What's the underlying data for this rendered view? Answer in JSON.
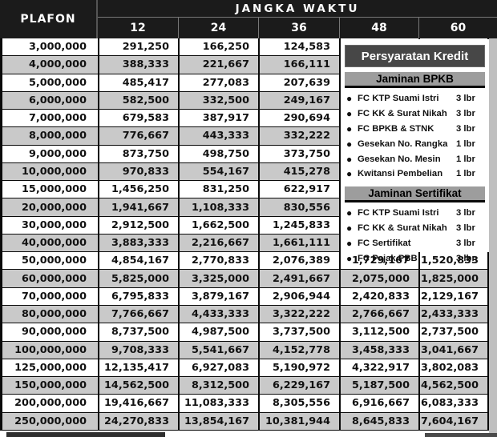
{
  "table": {
    "plafon_header": "PLAFON",
    "jangka_waktu_header": "JANGKA WAKTU",
    "period_columns": [
      "12",
      "24",
      "36",
      "48",
      "60"
    ],
    "rows": [
      {
        "plafon": "3,000,000",
        "values": [
          "291,250",
          "166,250",
          "124,583",
          "",
          ""
        ]
      },
      {
        "plafon": "4,000,000",
        "values": [
          "388,333",
          "221,667",
          "166,111",
          "",
          ""
        ]
      },
      {
        "plafon": "5,000,000",
        "values": [
          "485,417",
          "277,083",
          "207,639",
          "",
          ""
        ]
      },
      {
        "plafon": "6,000,000",
        "values": [
          "582,500",
          "332,500",
          "249,167",
          "",
          ""
        ]
      },
      {
        "plafon": "7,000,000",
        "values": [
          "679,583",
          "387,917",
          "290,694",
          "",
          ""
        ]
      },
      {
        "plafon": "8,000,000",
        "values": [
          "776,667",
          "443,333",
          "332,222",
          "",
          ""
        ]
      },
      {
        "plafon": "9,000,000",
        "values": [
          "873,750",
          "498,750",
          "373,750",
          "",
          ""
        ]
      },
      {
        "plafon": "10,000,000",
        "values": [
          "970,833",
          "554,167",
          "415,278",
          "",
          ""
        ]
      },
      {
        "plafon": "15,000,000",
        "values": [
          "1,456,250",
          "831,250",
          "622,917",
          "",
          ""
        ]
      },
      {
        "plafon": "20,000,000",
        "values": [
          "1,941,667",
          "1,108,333",
          "830,556",
          "",
          ""
        ]
      },
      {
        "plafon": "30,000,000",
        "values": [
          "2,912,500",
          "1,662,500",
          "1,245,833",
          "",
          ""
        ]
      },
      {
        "plafon": "40,000,000",
        "values": [
          "3,883,333",
          "2,216,667",
          "1,661,111",
          "",
          ""
        ]
      },
      {
        "plafon": "50,000,000",
        "values": [
          "4,854,167",
          "2,770,833",
          "2,076,389",
          "1,729,167",
          "1,520,833"
        ]
      },
      {
        "plafon": "60,000,000",
        "values": [
          "5,825,000",
          "3,325,000",
          "2,491,667",
          "2,075,000",
          "1,825,000"
        ]
      },
      {
        "plafon": "70,000,000",
        "values": [
          "6,795,833",
          "3,879,167",
          "2,906,944",
          "2,420,833",
          "2,129,167"
        ]
      },
      {
        "plafon": "80,000,000",
        "values": [
          "7,766,667",
          "4,433,333",
          "3,322,222",
          "2,766,667",
          "2,433,333"
        ]
      },
      {
        "plafon": "90,000,000",
        "values": [
          "8,737,500",
          "4,987,500",
          "3,737,500",
          "3,112,500",
          "2,737,500"
        ]
      },
      {
        "plafon": "100,000,000",
        "values": [
          "9,708,333",
          "5,541,667",
          "4,152,778",
          "3,458,333",
          "3,041,667"
        ]
      },
      {
        "plafon": "125,000,000",
        "values": [
          "12,135,417",
          "6,927,083",
          "5,190,972",
          "4,322,917",
          "3,802,083"
        ]
      },
      {
        "plafon": "150,000,000",
        "values": [
          "14,562,500",
          "8,312,500",
          "6,229,167",
          "5,187,500",
          "4,562,500"
        ]
      },
      {
        "plafon": "200,000,000",
        "values": [
          "19,416,667",
          "11,083,333",
          "8,305,556",
          "6,916,667",
          "6,083,333"
        ]
      },
      {
        "plafon": "250,000,000",
        "values": [
          "24,270,833",
          "13,854,167",
          "10,381,944",
          "8,645,833",
          "7,604,167"
        ]
      }
    ]
  },
  "panel": {
    "title": "Persyaratan Kredit",
    "sections": [
      {
        "heading": "Jaminan BPKB",
        "items": [
          {
            "label": "FC KTP Suami Istri",
            "qty": "3 lbr"
          },
          {
            "label": "FC KK & Surat Nikah",
            "qty": "3 lbr"
          },
          {
            "label": "FC BPKB & STNK",
            "qty": "3 lbr"
          },
          {
            "label": "Gesekan No. Rangka",
            "qty": "1 lbr"
          },
          {
            "label": "Gesekan No. Mesin",
            "qty": "1 lbr"
          },
          {
            "label": "Kwitansi Pembelian",
            "qty": "1 lbr"
          }
        ]
      },
      {
        "heading": "Jaminan Sertifikat",
        "items": [
          {
            "label": "FC KTP Suami Istri",
            "qty": "3 lbr"
          },
          {
            "label": "FC KK & Surat Nikah",
            "qty": "3 lbr"
          },
          {
            "label": "FC Sertifikat",
            "qty": "3 lbr"
          },
          {
            "label": "FC Pajak PBB",
            "qty": "3 lbr"
          }
        ]
      }
    ]
  },
  "colors": {
    "header_bg": "#1b1b1b",
    "row_alt_bg": "#c9c9c9",
    "panel_title_bg": "#474747",
    "section_head_bg": "#9d9d9d",
    "border": "#0a0a0a"
  }
}
